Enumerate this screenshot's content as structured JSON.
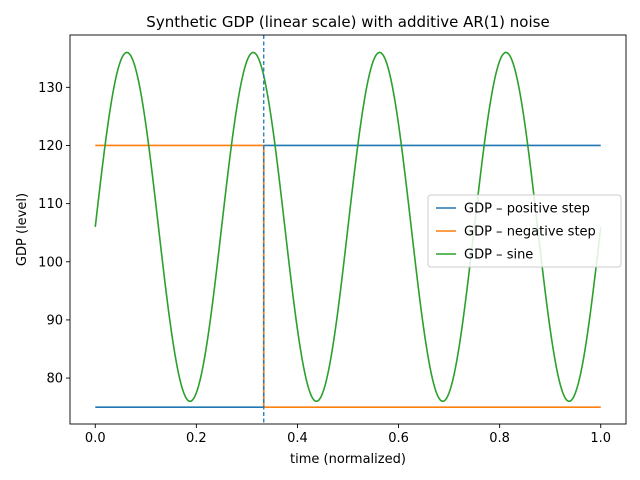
{
  "chart_data": {
    "type": "line",
    "title": "Synthetic GDP (linear scale) with additive AR(1) noise",
    "xlabel": "time (normalized)",
    "ylabel": "GDP (level)",
    "xlim": [
      -0.05,
      1.05
    ],
    "ylim": [
      72.1,
      139.0
    ],
    "x_ticks": [
      0.0,
      0.2,
      0.4,
      0.6,
      0.8,
      1.0
    ],
    "x_tick_labels": [
      "0.0",
      "0.2",
      "0.4",
      "0.6",
      "0.8",
      "1.0"
    ],
    "y_ticks": [
      80,
      90,
      100,
      110,
      120,
      130
    ],
    "y_tick_labels": [
      "80",
      "90",
      "100",
      "110",
      "120",
      "130"
    ],
    "grid": false,
    "legend_position": "center-right",
    "vline": {
      "x": 0.3333,
      "style": "dashed",
      "color": "#1f77b4"
    },
    "series": [
      {
        "name": "GDP – positive step",
        "color": "#1f77b4",
        "x": [
          0.0,
          0.3333,
          0.3333,
          1.0
        ],
        "y": [
          75,
          75,
          120,
          120
        ]
      },
      {
        "name": "GDP – negative step",
        "color": "#ff7f0e",
        "x": [
          0.0,
          0.3333,
          0.3333,
          1.0
        ],
        "y": [
          120,
          120,
          75,
          75
        ]
      },
      {
        "name": "GDP – sine",
        "color": "#2ca02c",
        "function": {
          "offset": 106,
          "amplitude": 30,
          "cycles": 4,
          "x_range": [
            0.0,
            1.0
          ],
          "samples": 400
        }
      }
    ]
  }
}
